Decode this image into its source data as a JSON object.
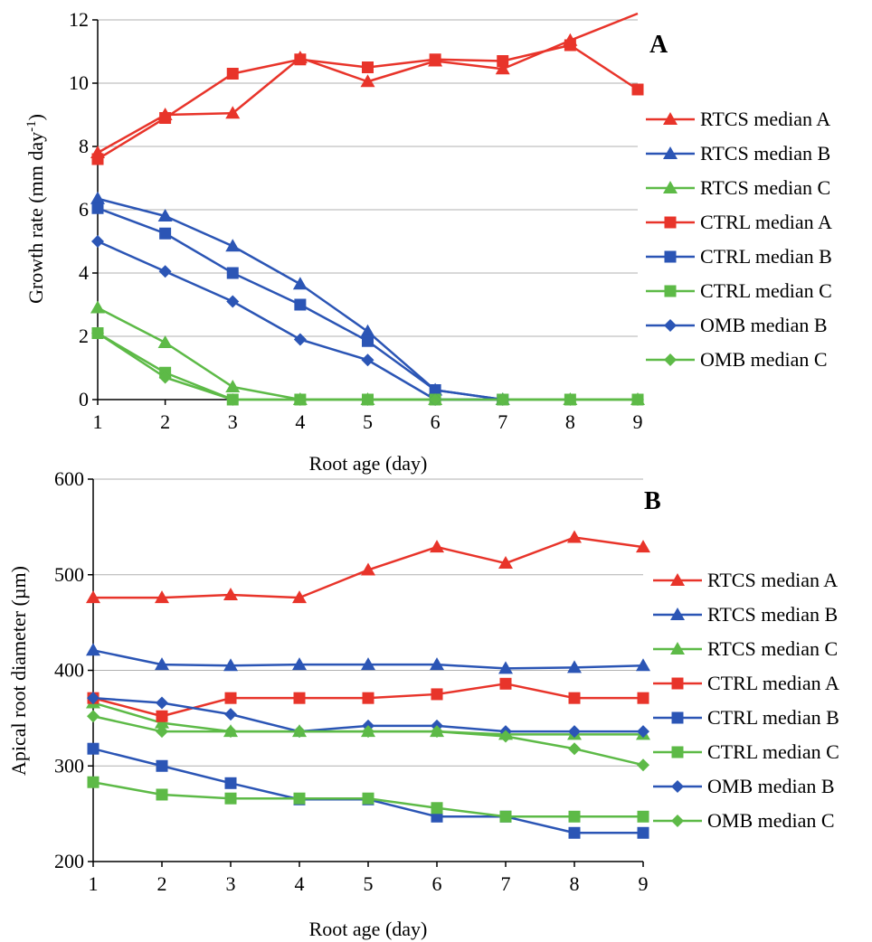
{
  "chart_data": [
    {
      "panel": "A",
      "type": "line",
      "xlabel": "Root age (day)",
      "ylabel": "Growth rate (mm day",
      "ylabel_sup": "-1",
      "ylabel_close": ")",
      "xlim": [
        1,
        9
      ],
      "ylim": [
        0,
        12
      ],
      "x_ticks": [
        1,
        2,
        3,
        4,
        5,
        6,
        7,
        8,
        9
      ],
      "y_ticks": [
        0,
        2,
        4,
        6,
        8,
        10,
        12
      ],
      "grid": "horizontal",
      "legend_position": "right",
      "series": [
        {
          "name": "RTCS median A",
          "color": "#e8342a",
          "marker": "triangle",
          "x": [
            1,
            2,
            3,
            4,
            5,
            6,
            7,
            8,
            9
          ],
          "y": [
            7.8,
            9.0,
            9.05,
            10.8,
            10.05,
            10.7,
            10.45,
            11.35,
            12.2
          ]
        },
        {
          "name": "RTCS median B",
          "color": "#2b55b5",
          "marker": "triangle",
          "x": [
            1,
            2,
            3,
            4,
            5,
            6,
            7
          ],
          "y": [
            6.35,
            5.8,
            4.85,
            3.65,
            2.15,
            0.3,
            0
          ]
        },
        {
          "name": "RTCS median C",
          "color": "#5dba47",
          "marker": "triangle",
          "x": [
            1,
            2,
            3,
            4,
            5,
            6,
            7,
            8,
            9
          ],
          "y": [
            2.9,
            1.8,
            0.4,
            0,
            0,
            0,
            0,
            0,
            0
          ]
        },
        {
          "name": "CTRL median A",
          "color": "#e8342a",
          "marker": "square",
          "x": [
            1,
            2,
            3,
            4,
            5,
            6,
            7,
            8,
            9
          ],
          "y": [
            7.6,
            8.9,
            10.3,
            10.75,
            10.5,
            10.75,
            10.7,
            11.2,
            9.8
          ]
        },
        {
          "name": "CTRL median B",
          "color": "#2b55b5",
          "marker": "square",
          "x": [
            1,
            2,
            3,
            4,
            5,
            6,
            7
          ],
          "y": [
            6.05,
            5.25,
            4.0,
            3.0,
            1.85,
            0.3,
            0
          ]
        },
        {
          "name": "CTRL median C",
          "color": "#5dba47",
          "marker": "square",
          "x": [
            1,
            2,
            3,
            4,
            5,
            6,
            7,
            8,
            9
          ],
          "y": [
            2.1,
            0.85,
            0,
            0,
            0,
            0,
            0,
            0,
            0
          ]
        },
        {
          "name": "OMB median B",
          "color": "#2b55b5",
          "marker": "diamond",
          "x": [
            1,
            2,
            3,
            4,
            5,
            6,
            7
          ],
          "y": [
            5.0,
            4.05,
            3.1,
            1.9,
            1.25,
            0,
            0
          ]
        },
        {
          "name": "OMB median C",
          "color": "#5dba47",
          "marker": "diamond",
          "x": [
            1,
            2,
            3,
            4,
            5,
            6,
            7,
            8,
            9
          ],
          "y": [
            2.1,
            0.7,
            0,
            0,
            0,
            0,
            0,
            0,
            0
          ]
        }
      ]
    },
    {
      "panel": "B",
      "type": "line",
      "xlabel": "Root age (day)",
      "ylabel": "Apical root diameter (µm)",
      "xlim": [
        1,
        9
      ],
      "ylim": [
        200,
        600
      ],
      "x_ticks": [
        1,
        2,
        3,
        4,
        5,
        6,
        7,
        8,
        9
      ],
      "y_ticks": [
        200,
        300,
        400,
        500,
        600
      ],
      "grid": "horizontal",
      "legend_position": "right",
      "series": [
        {
          "name": "RTCS median A",
          "color": "#e8342a",
          "marker": "triangle",
          "x": [
            1,
            2,
            3,
            4,
            5,
            6,
            7,
            8,
            9
          ],
          "y": [
            476,
            476,
            479,
            476,
            505,
            529,
            512,
            539,
            529
          ]
        },
        {
          "name": "RTCS median B",
          "color": "#2b55b5",
          "marker": "triangle",
          "x": [
            1,
            2,
            3,
            4,
            5,
            6,
            7,
            8,
            9
          ],
          "y": [
            421,
            406,
            405,
            406,
            406,
            406,
            402,
            403,
            405
          ]
        },
        {
          "name": "RTCS median C",
          "color": "#5dba47",
          "marker": "triangle",
          "x": [
            1,
            2,
            3,
            4,
            5,
            6,
            7,
            8,
            9
          ],
          "y": [
            366,
            345,
            336,
            336,
            336,
            336,
            333,
            333,
            333
          ]
        },
        {
          "name": "CTRL median A",
          "color": "#e8342a",
          "marker": "square",
          "x": [
            1,
            2,
            3,
            4,
            5,
            6,
            7,
            8,
            9
          ],
          "y": [
            371,
            352,
            371,
            371,
            371,
            375,
            386,
            371,
            371
          ]
        },
        {
          "name": "CTRL median B",
          "color": "#2b55b5",
          "marker": "square",
          "x": [
            1,
            2,
            3,
            4,
            5,
            6,
            7,
            8,
            9
          ],
          "y": [
            318,
            300,
            282,
            265,
            265,
            247,
            247,
            230,
            230
          ]
        },
        {
          "name": "CTRL median C",
          "color": "#5dba47",
          "marker": "square",
          "x": [
            1,
            2,
            3,
            4,
            5,
            6,
            7,
            8,
            9
          ],
          "y": [
            283,
            270,
            266,
            266,
            266,
            256,
            247,
            247,
            247
          ]
        },
        {
          "name": "OMB median B",
          "color": "#2b55b5",
          "marker": "diamond",
          "x": [
            1,
            2,
            3,
            4,
            5,
            6,
            7,
            8,
            9
          ],
          "y": [
            371,
            366,
            354,
            336,
            342,
            342,
            336,
            336,
            336
          ]
        },
        {
          "name": "OMB median C",
          "color": "#5dba47",
          "marker": "diamond",
          "x": [
            1,
            2,
            3,
            4,
            5,
            6,
            7,
            8,
            9
          ],
          "y": [
            352,
            336,
            336,
            336,
            336,
            336,
            331,
            318,
            301
          ]
        }
      ]
    }
  ]
}
